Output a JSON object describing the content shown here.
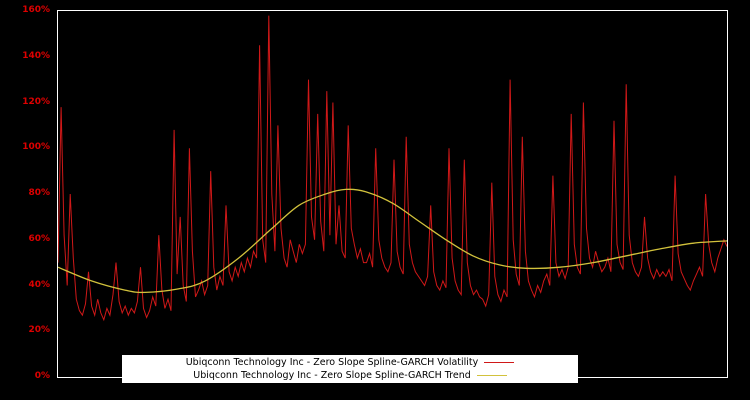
{
  "chart_data": {
    "type": "line",
    "title": "",
    "xlabel": "",
    "ylabel": "",
    "ylim": [
      0,
      160
    ],
    "grid": false,
    "background_color": "#000000",
    "frame_color": "#ffffff",
    "axis_label_color": "#dd0000",
    "legend_position": "bottom-inside",
    "yticks": [
      {
        "label": "0%",
        "value": 0
      },
      {
        "label": "20%",
        "value": 20
      },
      {
        "label": "40%",
        "value": 40
      },
      {
        "label": "60%",
        "value": 60
      },
      {
        "label": "80%",
        "value": 80
      },
      {
        "label": "100%",
        "value": 100
      },
      {
        "label": "120%",
        "value": 120
      },
      {
        "label": "140%",
        "value": 140
      },
      {
        "label": "160%",
        "value": 160
      }
    ],
    "series": [
      {
        "name": "Ubiqconn Technology Inc - Zero Slope Spline-GARCH Volatility",
        "color": "#d01818",
        "style": "spiky",
        "values": [
          50,
          118,
          62,
          40,
          80,
          52,
          34,
          29,
          27,
          32,
          46,
          31,
          27,
          34,
          28,
          25,
          30,
          27,
          36,
          50,
          33,
          28,
          31,
          27,
          30,
          28,
          33,
          48,
          30,
          26,
          29,
          35,
          31,
          62,
          38,
          30,
          34,
          29,
          108,
          45,
          70,
          40,
          33,
          100,
          55,
          35,
          38,
          42,
          36,
          40,
          90,
          48,
          38,
          44,
          40,
          75,
          46,
          42,
          48,
          44,
          50,
          46,
          52,
          48,
          55,
          52,
          145,
          60,
          50,
          158,
          80,
          55,
          110,
          65,
          52,
          48,
          60,
          55,
          50,
          58,
          54,
          58,
          130,
          70,
          60,
          115,
          68,
          55,
          125,
          62,
          120,
          58,
          75,
          55,
          52,
          110,
          65,
          58,
          52,
          56,
          50,
          50,
          54,
          48,
          100,
          60,
          52,
          48,
          46,
          50,
          95,
          55,
          48,
          45,
          105,
          58,
          50,
          46,
          44,
          42,
          40,
          44,
          75,
          46,
          40,
          38,
          42,
          39,
          100,
          52,
          42,
          38,
          36,
          95,
          50,
          40,
          36,
          38,
          35,
          34,
          31,
          36,
          85,
          44,
          36,
          33,
          38,
          35,
          130,
          60,
          45,
          40,
          105,
          55,
          42,
          38,
          35,
          40,
          37,
          42,
          45,
          40,
          88,
          50,
          44,
          47,
          43,
          48,
          115,
          58,
          48,
          45,
          120,
          65,
          52,
          48,
          55,
          50,
          46,
          48,
          52,
          46,
          112,
          58,
          50,
          47,
          128,
          62,
          50,
          46,
          44,
          48,
          70,
          52,
          46,
          43,
          47,
          44,
          46,
          44,
          47,
          42,
          88,
          54,
          46,
          43,
          40,
          38,
          42,
          45,
          48,
          44,
          80,
          58,
          50,
          46,
          52,
          56,
          60,
          57
        ]
      },
      {
        "name": "Ubiqconn Technology Inc - Zero Slope Spline-GARCH Trend",
        "color": "#d2c23c",
        "style": "smooth",
        "x": [
          0,
          0.05,
          0.1,
          0.13,
          0.18,
          0.22,
          0.27,
          0.32,
          0.36,
          0.4,
          0.43,
          0.46,
          0.5,
          0.54,
          0.58,
          0.62,
          0.66,
          0.7,
          0.75,
          0.8,
          0.85,
          0.9,
          0.95,
          1.0
        ],
        "values": [
          48,
          42,
          38,
          37,
          38.5,
          42,
          52,
          65,
          75,
          80,
          82,
          81,
          76,
          68,
          60,
          53,
          49,
          47.5,
          48,
          50,
          53,
          56,
          58.5,
          59.5
        ]
      }
    ]
  }
}
